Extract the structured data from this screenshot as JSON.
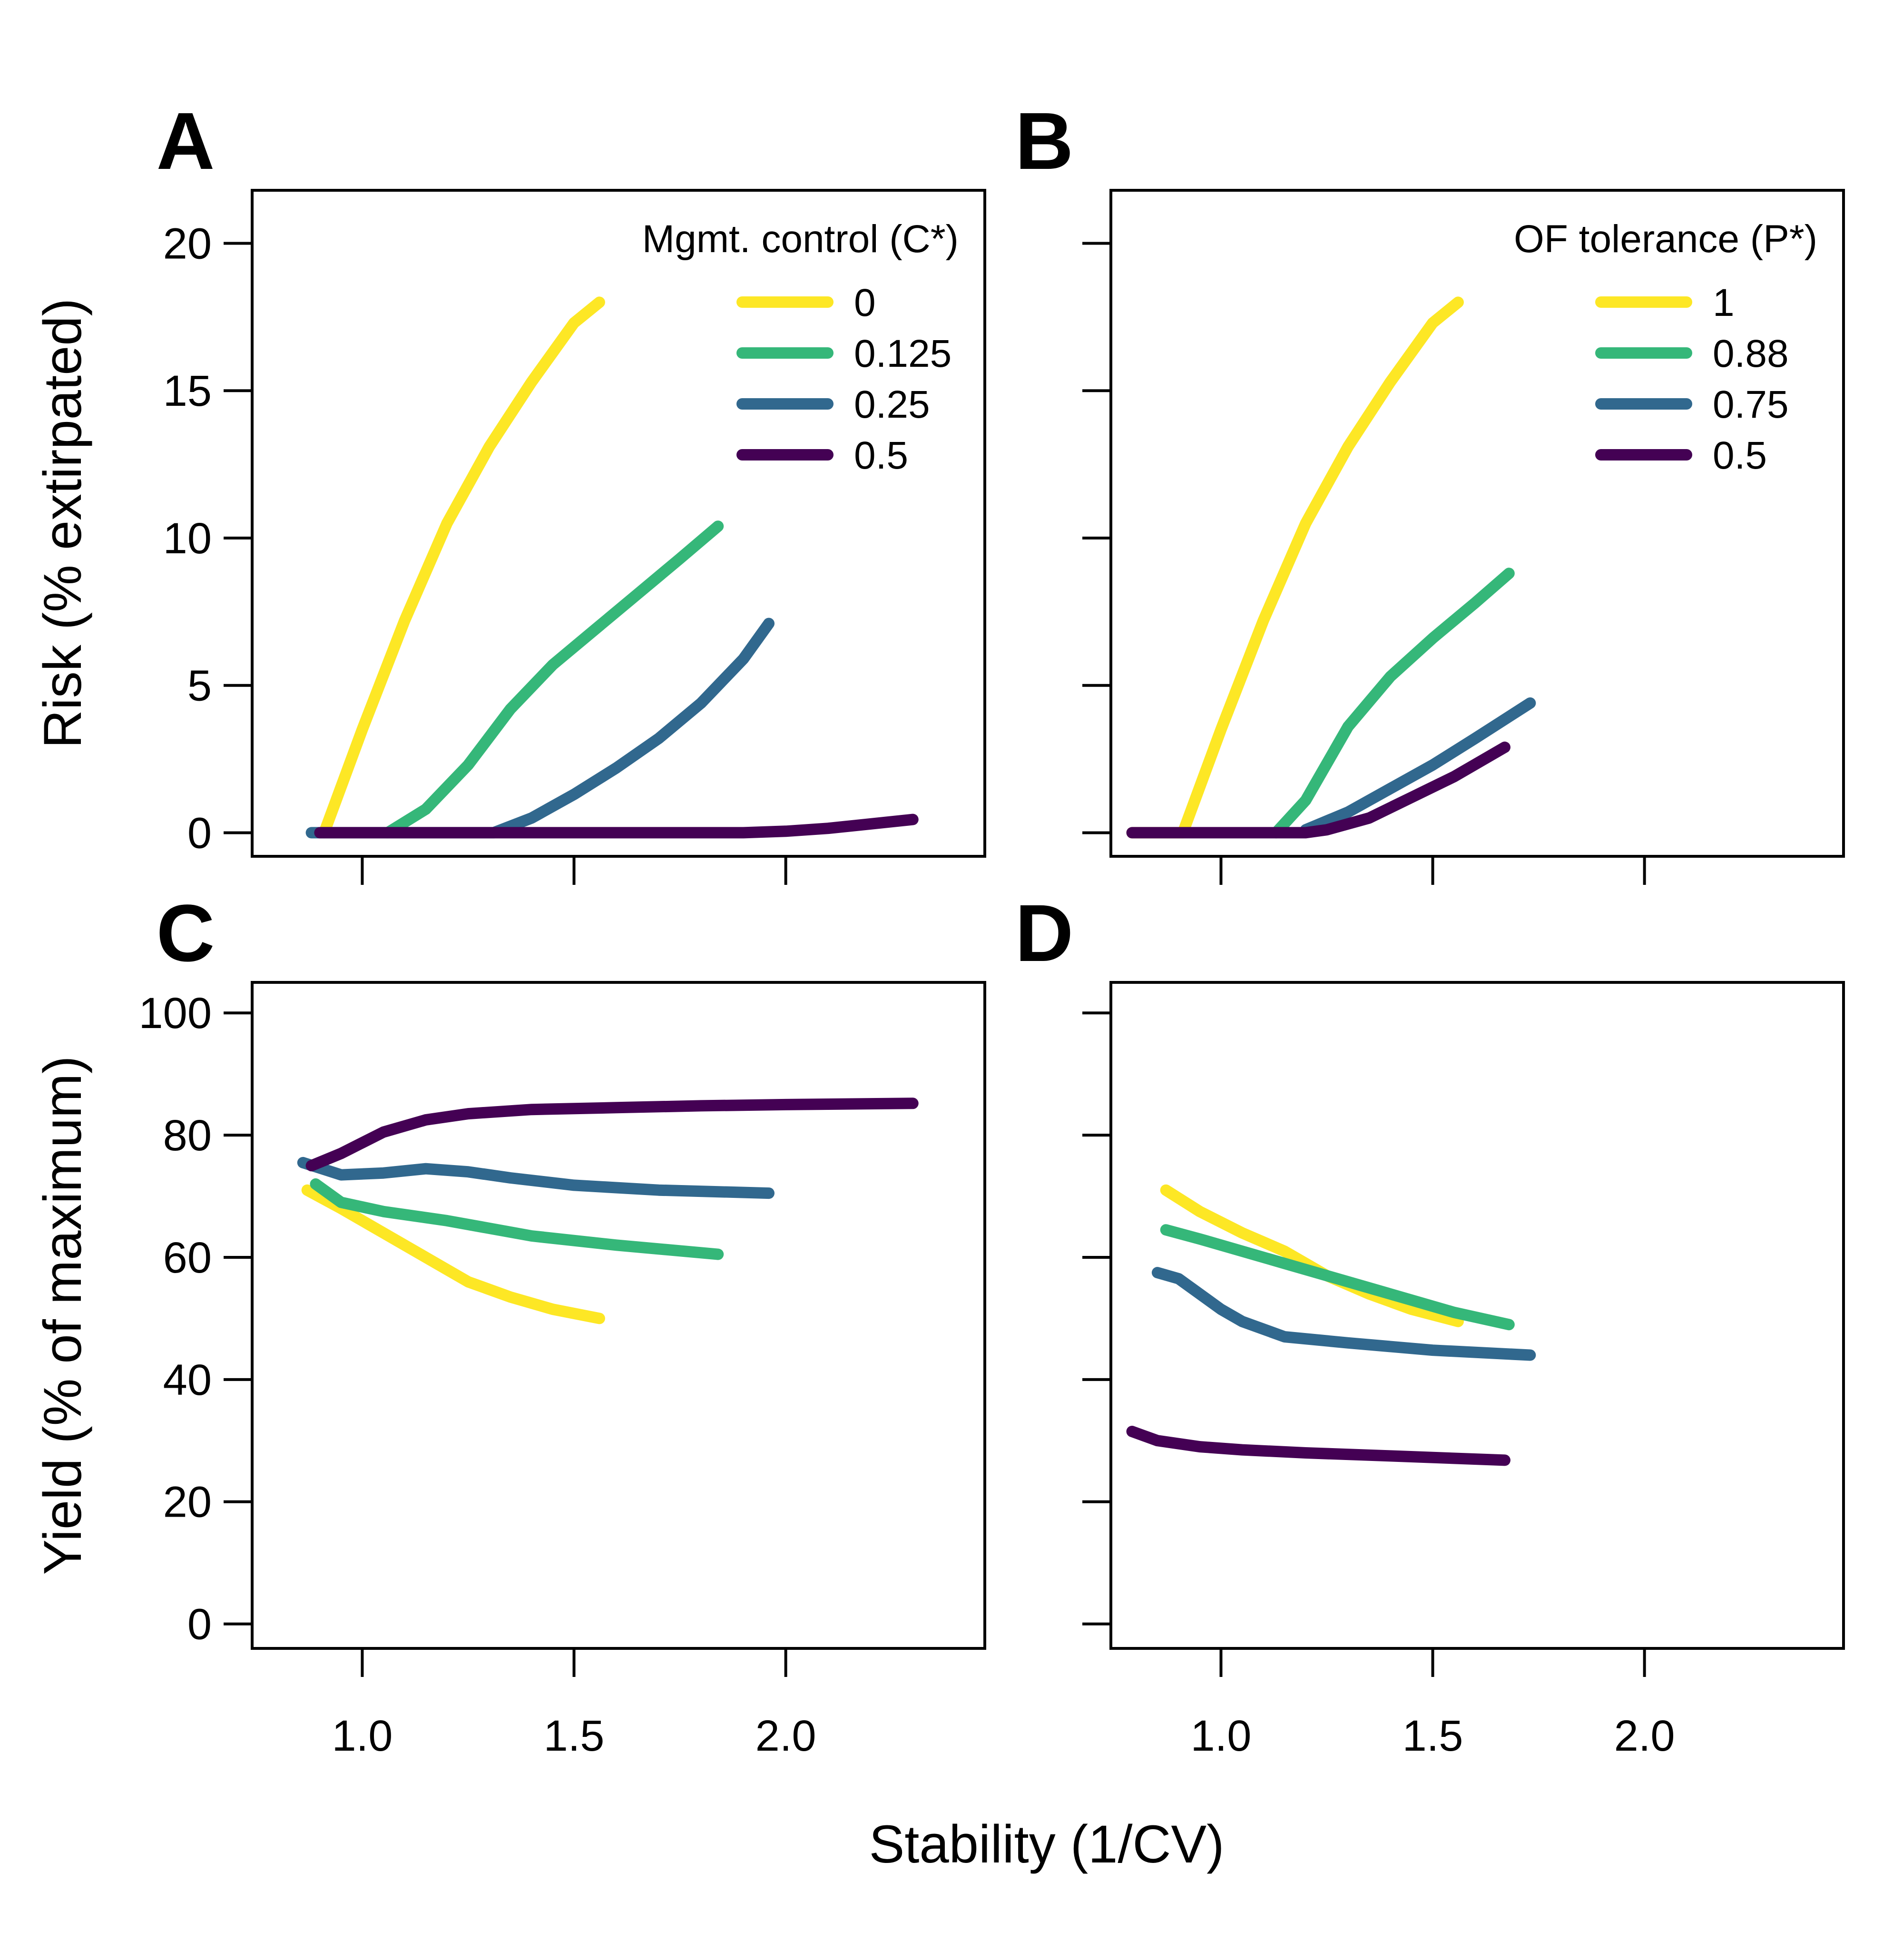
{
  "chart_data": [
    {
      "panel": "A",
      "type": "line",
      "ylabel": "Risk (% extirpated)",
      "xlim": [
        0.74,
        2.47
      ],
      "ylim": [
        -0.8,
        21.8
      ],
      "xticks": [
        1.0,
        1.5,
        2.0
      ],
      "xtick_labels": [],
      "yticks": [
        0,
        5,
        10,
        15,
        20
      ],
      "ytick_labels": [
        "0",
        "5",
        "10",
        "15",
        "20"
      ],
      "legend": {
        "title": "Mgmt. control (C*)",
        "position": "top-right"
      },
      "series": [
        {
          "name": "0",
          "color": "#fde725",
          "x": [
            0.91,
            1.0,
            1.1,
            1.2,
            1.3,
            1.4,
            1.5,
            1.56
          ],
          "y": [
            0,
            3.5,
            7.2,
            10.5,
            13.1,
            15.3,
            17.3,
            18.0
          ]
        },
        {
          "name": "0.125",
          "color": "#35b779",
          "x": [
            1.06,
            1.15,
            1.25,
            1.35,
            1.45,
            1.55,
            1.65,
            1.75,
            1.84
          ],
          "y": [
            0,
            0.8,
            2.3,
            4.2,
            5.7,
            6.9,
            8.1,
            9.3,
            10.4
          ]
        },
        {
          "name": "0.25",
          "color": "#31688e",
          "x": [
            0.88,
            1.0,
            1.2,
            1.31,
            1.4,
            1.5,
            1.6,
            1.7,
            1.8,
            1.9,
            1.96
          ],
          "y": [
            0,
            0,
            0,
            0,
            0.5,
            1.3,
            2.2,
            3.2,
            4.4,
            5.9,
            7.1
          ]
        },
        {
          "name": "0.5",
          "color": "#440154",
          "x": [
            0.9,
            1.0,
            1.5,
            1.9,
            2.0,
            2.1,
            2.2,
            2.3
          ],
          "y": [
            0,
            0,
            0,
            0,
            0.05,
            0.15,
            0.3,
            0.45
          ]
        }
      ]
    },
    {
      "panel": "B",
      "type": "line",
      "ylabel": "",
      "xlim": [
        0.74,
        2.47
      ],
      "ylim": [
        -0.8,
        21.8
      ],
      "xticks": [
        1.0,
        1.5,
        2.0
      ],
      "xtick_labels": [],
      "yticks": [
        0,
        5,
        10,
        15,
        20
      ],
      "ytick_labels": [],
      "legend": {
        "title": "OF tolerance (P*)",
        "position": "top-right"
      },
      "series": [
        {
          "name": "1",
          "color": "#fde725",
          "x": [
            0.79,
            0.91,
            1.0,
            1.1,
            1.2,
            1.3,
            1.4,
            1.5,
            1.56
          ],
          "y": [
            0,
            0,
            3.5,
            7.2,
            10.5,
            13.1,
            15.3,
            17.3,
            18.0
          ]
        },
        {
          "name": "0.88",
          "color": "#35b779",
          "x": [
            1.13,
            1.2,
            1.3,
            1.4,
            1.5,
            1.6,
            1.68
          ],
          "y": [
            0,
            1.1,
            3.6,
            5.3,
            6.6,
            7.8,
            8.8
          ]
        },
        {
          "name": "0.75",
          "color": "#31688e",
          "x": [
            1.2,
            1.3,
            1.4,
            1.5,
            1.6,
            1.73
          ],
          "y": [
            0.1,
            0.7,
            1.5,
            2.3,
            3.2,
            4.4
          ]
        },
        {
          "name": "0.5",
          "color": "#440154",
          "x": [
            0.79,
            1.0,
            1.2,
            1.25,
            1.35,
            1.45,
            1.55,
            1.67
          ],
          "y": [
            0,
            0,
            0,
            0.1,
            0.5,
            1.2,
            1.9,
            2.9
          ]
        }
      ]
    },
    {
      "panel": "C",
      "type": "line",
      "ylabel": "Yield (% of maximum)",
      "xlim": [
        0.74,
        2.47
      ],
      "ylim": [
        -4,
        105
      ],
      "xticks": [
        1.0,
        1.5,
        2.0
      ],
      "xtick_labels": [
        "1.0",
        "1.5",
        "2.0"
      ],
      "yticks": [
        0,
        20,
        40,
        60,
        80,
        100
      ],
      "ytick_labels": [
        "0",
        "20",
        "40",
        "60",
        "80",
        "100"
      ],
      "series": [
        {
          "name": "0",
          "color": "#fde725",
          "x": [
            0.87,
            0.95,
            1.05,
            1.15,
            1.25,
            1.35,
            1.45,
            1.56
          ],
          "y": [
            71,
            68,
            64,
            60,
            56,
            53.5,
            51.5,
            50
          ]
        },
        {
          "name": "0.125",
          "color": "#35b779",
          "x": [
            0.89,
            0.95,
            1.05,
            1.2,
            1.4,
            1.6,
            1.84
          ],
          "y": [
            72,
            69,
            67.5,
            66,
            63.5,
            62,
            60.5
          ]
        },
        {
          "name": "0.25",
          "color": "#31688e",
          "x": [
            0.86,
            0.95,
            1.05,
            1.15,
            1.25,
            1.35,
            1.5,
            1.7,
            1.96
          ],
          "y": [
            75.5,
            73.5,
            73.8,
            74.5,
            74,
            73,
            71.8,
            71,
            70.5
          ]
        },
        {
          "name": "0.5",
          "color": "#440154",
          "x": [
            0.88,
            0.95,
            1.05,
            1.15,
            1.25,
            1.4,
            1.6,
            1.8,
            2.0,
            2.3
          ],
          "y": [
            75,
            77,
            80.5,
            82.5,
            83.5,
            84.2,
            84.5,
            84.8,
            85,
            85.2
          ]
        }
      ]
    },
    {
      "panel": "D",
      "type": "line",
      "ylabel": "",
      "xlim": [
        0.74,
        2.47
      ],
      "ylim": [
        -4,
        105
      ],
      "xticks": [
        1.0,
        1.5,
        2.0
      ],
      "xtick_labels": [
        "1.0",
        "1.5",
        "2.0"
      ],
      "yticks": [
        0,
        20,
        40,
        60,
        80,
        100
      ],
      "ytick_labels": [],
      "series": [
        {
          "name": "1",
          "color": "#fde725",
          "x": [
            0.87,
            0.95,
            1.05,
            1.15,
            1.25,
            1.35,
            1.45,
            1.56
          ],
          "y": [
            71,
            67.5,
            64,
            61,
            57,
            54,
            51.5,
            49.5
          ]
        },
        {
          "name": "0.88",
          "color": "#35b779",
          "x": [
            0.87,
            0.95,
            1.05,
            1.15,
            1.25,
            1.35,
            1.45,
            1.55,
            1.68
          ],
          "y": [
            64.5,
            63,
            61,
            59,
            57,
            55,
            53,
            51,
            49
          ]
        },
        {
          "name": "0.75",
          "color": "#31688e",
          "x": [
            0.85,
            0.9,
            0.95,
            1.0,
            1.05,
            1.15,
            1.3,
            1.5,
            1.73
          ],
          "y": [
            57.5,
            56.5,
            54,
            51.5,
            49.5,
            47,
            46,
            44.8,
            44
          ]
        },
        {
          "name": "0.5",
          "color": "#440154",
          "x": [
            0.79,
            0.85,
            0.95,
            1.05,
            1.2,
            1.4,
            1.67
          ],
          "y": [
            31.5,
            30,
            29,
            28.5,
            28,
            27.5,
            26.8
          ]
        }
      ]
    }
  ],
  "shared": {
    "xlabel": "Stability (1/CV)"
  }
}
